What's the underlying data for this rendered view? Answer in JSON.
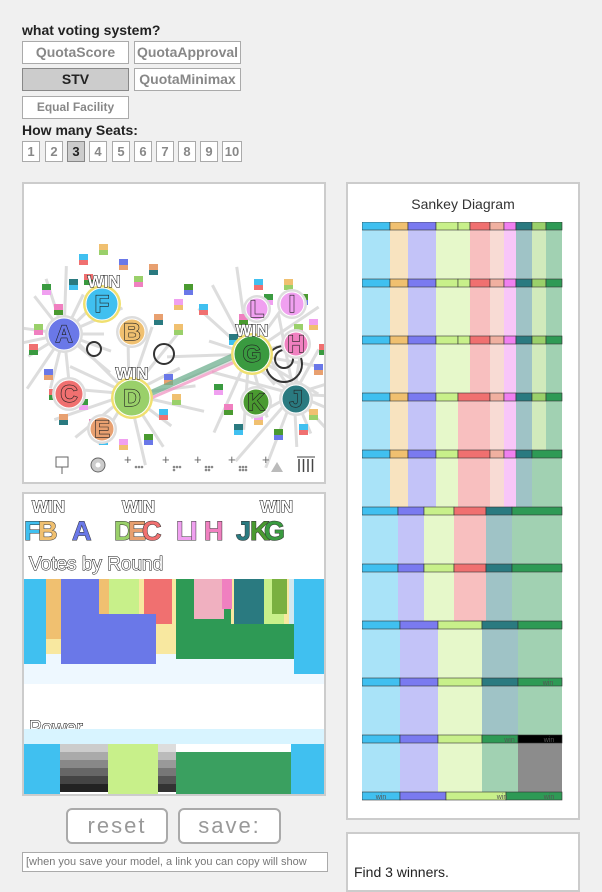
{
  "controls": {
    "voting_system_label": "what voting system?",
    "systems": [
      "QuotaScore",
      "QuotaApproval",
      "STV",
      "QuotaMinimax"
    ],
    "selected_system": "STV",
    "equal_facility_label": "Equal Facility",
    "seats_label": "How many Seats:",
    "seats": [
      "1",
      "2",
      "3",
      "4",
      "5",
      "6",
      "7",
      "8",
      "9",
      "10"
    ],
    "selected_seat": "3"
  },
  "sim": {
    "win_label": "WIN",
    "candidates": [
      {
        "letter": "A",
        "color": "#6a78e8"
      },
      {
        "letter": "B",
        "color": "#f0c070"
      },
      {
        "letter": "C",
        "color": "#f07070"
      },
      {
        "letter": "D",
        "color": "#9ad06a"
      },
      {
        "letter": "E",
        "color": "#e8a070"
      },
      {
        "letter": "F",
        "color": "#40c0f0"
      },
      {
        "letter": "G",
        "color": "#3a9a40"
      },
      {
        "letter": "H",
        "color": "#f080c0"
      },
      {
        "letter": "I",
        "color": "#f0a0f0"
      },
      {
        "letter": "J",
        "color": "#2a7a80"
      },
      {
        "letter": "K",
        "color": "#4a9a30"
      }
    ],
    "tools_icons": [
      "voter-pin-icon",
      "gear-icon",
      "add-candidate-icon",
      "add-voter-group-icon",
      "add-voter-scatter-icon",
      "add-voter-grid-icon",
      "add-triangle-icon",
      "trash-icon"
    ]
  },
  "results": {
    "win_label": "WIN",
    "groups": [
      {
        "letters": "FB",
        "win": true
      },
      {
        "letters": "A",
        "win": false
      },
      {
        "letters": "DEC",
        "win": true
      },
      {
        "letters": "LIH",
        "win": false
      },
      {
        "letters": "JKG",
        "win": true
      }
    ],
    "votes_by_round_label": "Votes by Round",
    "power_label": "Power"
  },
  "sankey": {
    "title": "Sankey Diagram",
    "win_label": "win",
    "round_winners": [
      {
        "row": 8,
        "color": "#2e9a55"
      },
      {
        "row": 9,
        "colors": [
          "#c8f08a",
          "#2e9a55"
        ]
      },
      {
        "row": 10,
        "colors": [
          "#40c0f0",
          "#c8f08a",
          "#2e9a55"
        ]
      }
    ]
  },
  "buttons": {
    "reset": "reset",
    "save": "save:",
    "link_placeholder": "[when you save your model, a link you can copy will show"
  },
  "caption": {
    "text": "Find 3 winners."
  }
}
